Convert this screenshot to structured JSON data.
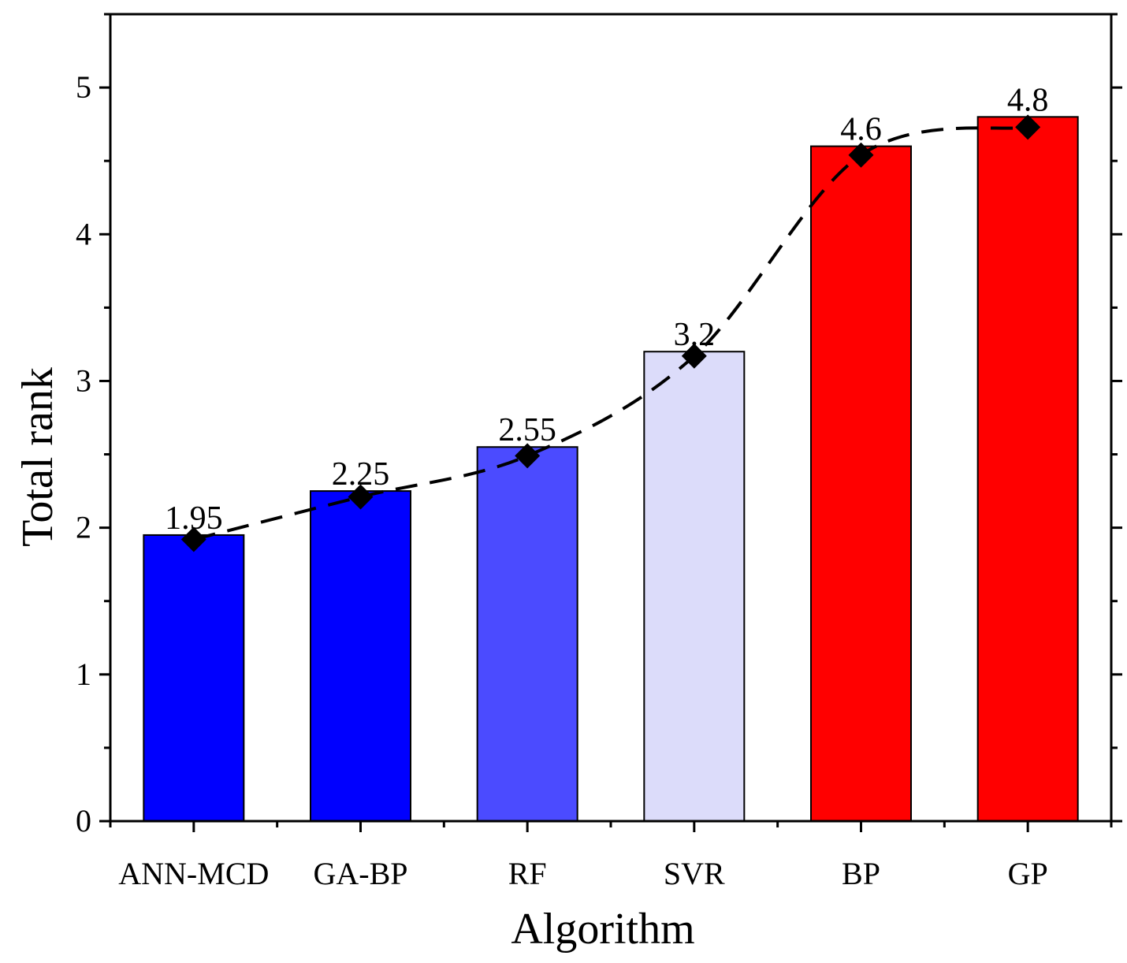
{
  "chart_data": {
    "type": "bar",
    "title": "",
    "xlabel": "Algorithm",
    "ylabel": "Total rank",
    "categories": [
      "ANN-MCD",
      "GA-BP",
      "RF",
      "SVR",
      "BP",
      "GP"
    ],
    "values": [
      1.95,
      2.25,
      2.55,
      3.2,
      4.6,
      4.8
    ],
    "data_labels": [
      "1.95",
      "2.25",
      "2.55",
      "3.2",
      "4.6",
      "4.8"
    ],
    "bar_colors": [
      "#0000ff",
      "#0000ff",
      "#4b4bff",
      "#dcdcfa",
      "#ff0000",
      "#ff0000"
    ],
    "trend_line": {
      "style": "dashed",
      "marker": "diamond",
      "values": [
        1.92,
        2.21,
        2.49,
        3.17,
        4.54,
        4.73
      ]
    },
    "ylim": [
      0,
      5.5
    ],
    "yticks": [
      0,
      1,
      2,
      3,
      4,
      5
    ],
    "grid": false,
    "legend": "none"
  }
}
